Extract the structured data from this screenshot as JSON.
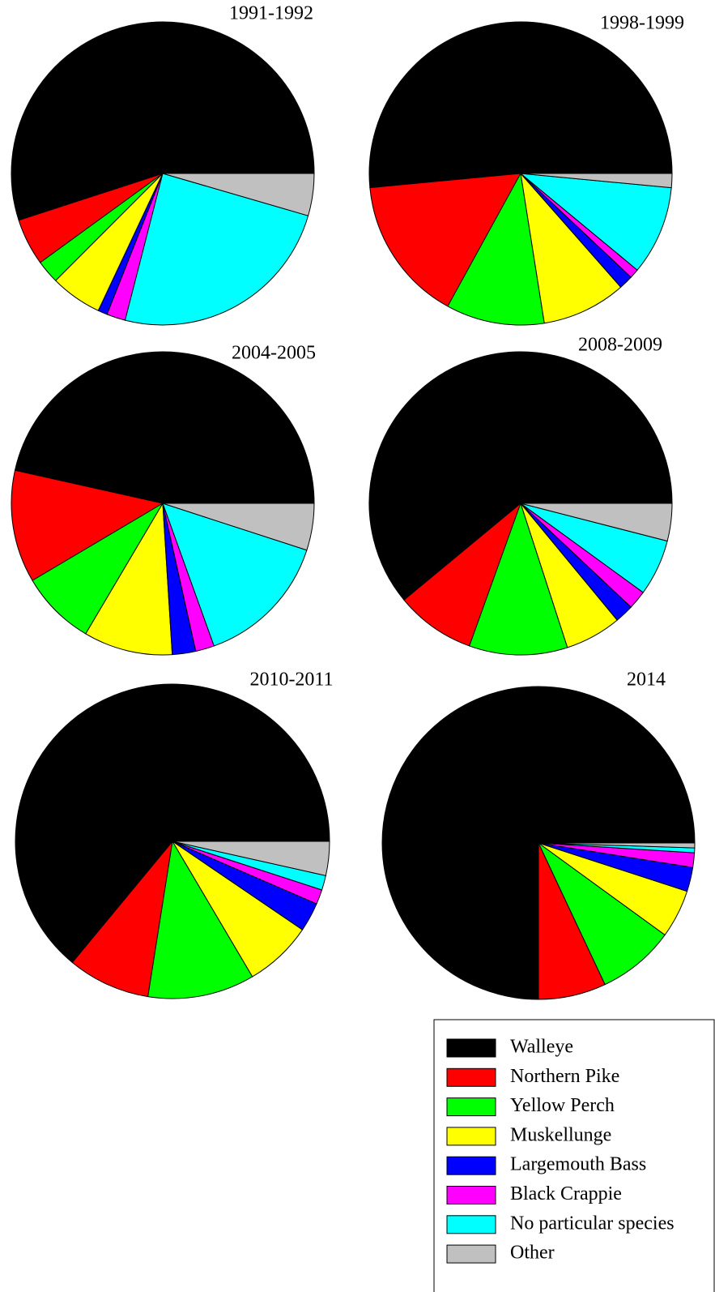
{
  "chart_data": {
    "type": "pie",
    "categories": [
      "Walleye",
      "Northern Pike",
      "Yellow Perch",
      "Muskellunge",
      "Largemouth Bass",
      "Black Crappie",
      "No particular species",
      "Other"
    ],
    "colors": [
      "#000000",
      "#ff0000",
      "#00ff00",
      "#ffff00",
      "#0000ff",
      "#ff00ff",
      "#00ffff",
      "#c0c0c0"
    ],
    "pies": [
      {
        "title": "1991-1992",
        "values": [
          55,
          5,
          2.5,
          5.5,
          1,
          2,
          24.5,
          4.5
        ]
      },
      {
        "title": "1998-1999",
        "values": [
          51.5,
          15.5,
          10.5,
          9,
          1.5,
          1,
          9.5,
          1.5
        ]
      },
      {
        "title": "2004-2005",
        "values": [
          46.5,
          12,
          8,
          9.5,
          2.5,
          2,
          14.5,
          5
        ]
      },
      {
        "title": "2008-2009",
        "values": [
          61,
          8.5,
          10.5,
          6,
          2,
          2,
          6,
          4
        ]
      },
      {
        "title": "2010-2011",
        "values": [
          64,
          8.5,
          11,
          7,
          3,
          1.5,
          1.5,
          3.5
        ]
      },
      {
        "title": "2014",
        "values": [
          75,
          7,
          8,
          5,
          2.5,
          1.5,
          0.5,
          0.5
        ]
      }
    ]
  }
}
